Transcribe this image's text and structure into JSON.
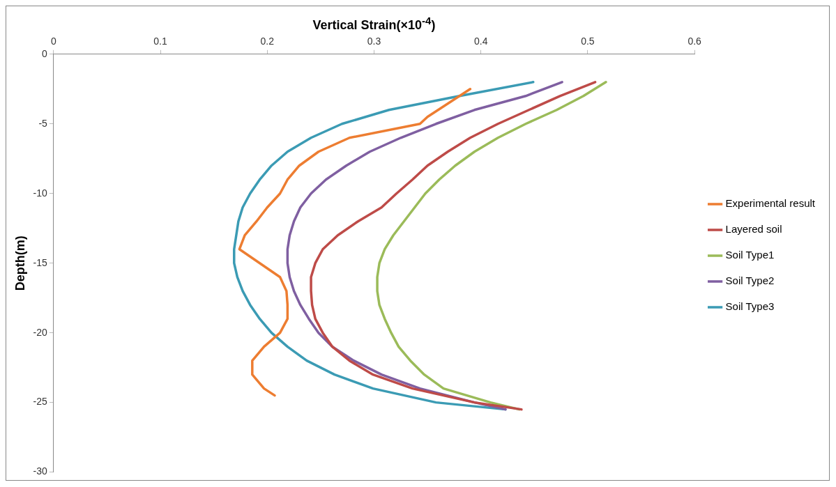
{
  "chart_data": {
    "type": "line",
    "xlabel": "Vertical Strain(×10$^{-4}$)",
    "ylabel": "Depth(m)",
    "xlim": [
      0,
      0.6
    ],
    "xticks": [
      0,
      0.1,
      0.2,
      0.3,
      0.4,
      0.5,
      0.6
    ],
    "ylim": [
      -30,
      0
    ],
    "yticks": [
      0,
      -5,
      -10,
      -15,
      -20,
      -25,
      -30
    ],
    "grid": false,
    "legend": "right",
    "marker": "none",
    "line_style": "solid",
    "series": [
      {
        "name": "Experimental result",
        "color": "#ed7d31",
        "x": [
          0.39,
          0.35,
          0.343,
          0.277,
          0.248,
          0.23,
          0.219,
          0.212,
          0.2,
          0.19,
          0.179,
          0.174,
          0.193,
          0.212,
          0.218,
          0.219,
          0.219,
          0.212,
          0.197,
          0.186,
          0.186,
          0.197,
          0.207
        ],
        "values": [
          -2.5,
          -4.5,
          -5,
          -6,
          -7,
          -8,
          -9,
          -10,
          -11,
          -12,
          -13,
          -14,
          -15,
          -16,
          -17,
          -18,
          -19,
          -20,
          -21,
          -22,
          -23,
          -24,
          -24.5
        ]
      },
      {
        "name": "Layered soil",
        "color": "#be4b48",
        "x": [
          0.507,
          0.474,
          0.445,
          0.416,
          0.39,
          0.369,
          0.35,
          0.336,
          0.321,
          0.307,
          0.285,
          0.266,
          0.252,
          0.245,
          0.241,
          0.241,
          0.242,
          0.245,
          0.252,
          0.261,
          0.277,
          0.299,
          0.336,
          0.394,
          0.438
        ],
        "values": [
          -2,
          -3,
          -4,
          -5,
          -6,
          -7,
          -8,
          -9,
          -10,
          -11,
          -12,
          -13,
          -14,
          -15,
          -16,
          -17,
          -18,
          -19,
          -20,
          -21,
          -22,
          -23,
          -24,
          -25,
          -25.5
        ]
      },
      {
        "name": "Soil Type1",
        "color": "#9bbb59",
        "x": [
          0.517,
          0.496,
          0.471,
          0.442,
          0.416,
          0.394,
          0.376,
          0.361,
          0.348,
          0.338,
          0.328,
          0.318,
          0.31,
          0.305,
          0.303,
          0.303,
          0.305,
          0.31,
          0.316,
          0.323,
          0.334,
          0.347,
          0.365,
          0.409,
          0.436
        ],
        "values": [
          -2,
          -3,
          -4,
          -5,
          -6,
          -7,
          -8,
          -9,
          -10,
          -11,
          -12,
          -13,
          -14,
          -15,
          -16,
          -17,
          -18,
          -19,
          -20,
          -21,
          -22,
          -23,
          -24,
          -25,
          -25.5
        ]
      },
      {
        "name": "Soil Type2",
        "color": "#7f5fa1",
        "x": [
          0.476,
          0.442,
          0.394,
          0.358,
          0.325,
          0.296,
          0.274,
          0.255,
          0.241,
          0.231,
          0.225,
          0.221,
          0.219,
          0.219,
          0.221,
          0.225,
          0.231,
          0.239,
          0.248,
          0.261,
          0.281,
          0.307,
          0.343,
          0.394,
          0.423
        ],
        "values": [
          -2,
          -3,
          -4,
          -5,
          -6,
          -7,
          -8,
          -9,
          -10,
          -11,
          -12,
          -13,
          -14,
          -15,
          -16,
          -17,
          -18,
          -19,
          -20,
          -21,
          -22,
          -23,
          -24,
          -25,
          -25.5
        ]
      },
      {
        "name": "Soil Type3",
        "color": "#3b9bb4",
        "x": [
          0.449,
          0.38,
          0.314,
          0.27,
          0.241,
          0.219,
          0.204,
          0.193,
          0.184,
          0.177,
          0.173,
          0.171,
          0.169,
          0.169,
          0.172,
          0.177,
          0.184,
          0.193,
          0.204,
          0.219,
          0.237,
          0.263,
          0.299,
          0.358,
          0.423
        ],
        "values": [
          -2,
          -3,
          -4,
          -5,
          -6,
          -7,
          -8,
          -9,
          -10,
          -11,
          -12,
          -13,
          -14,
          -15,
          -16,
          -17,
          -18,
          -19,
          -20,
          -21,
          -22,
          -23,
          -24,
          -25,
          -25.5
        ]
      }
    ]
  }
}
